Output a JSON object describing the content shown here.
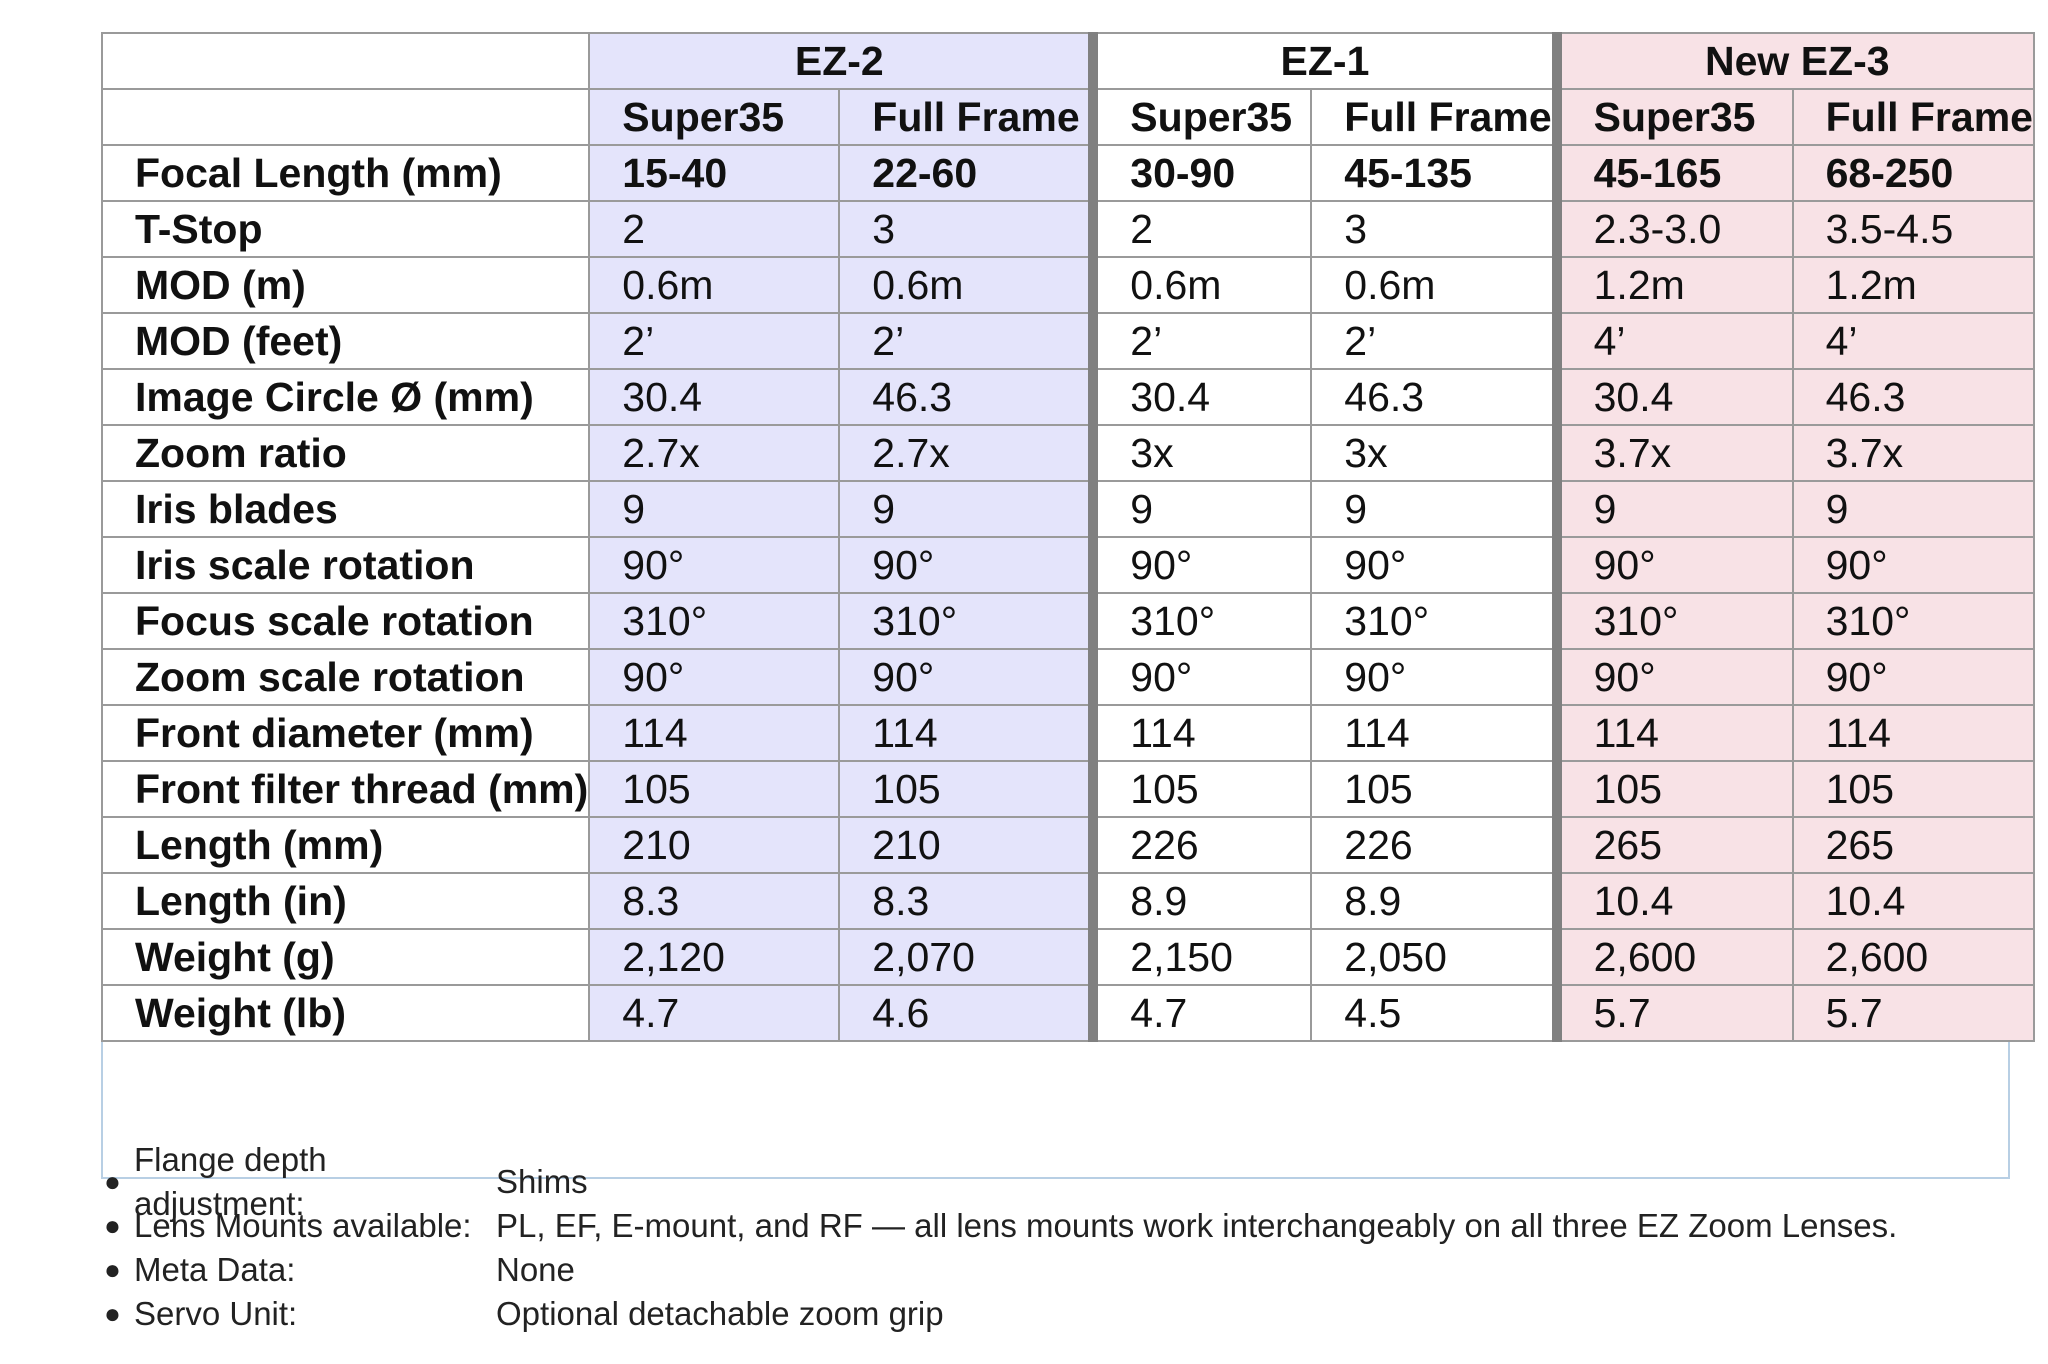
{
  "table": {
    "groups": [
      {
        "name": "EZ-2"
      },
      {
        "name": "EZ-1"
      },
      {
        "name": "New EZ-3"
      }
    ],
    "subheaders": [
      "Super35",
      "Full Frame",
      "Super35",
      "Full Frame",
      "Super35",
      "Full Frame"
    ],
    "rows": [
      {
        "label": "Focal Length (mm)",
        "values": [
          "15-40",
          "22-60",
          "30-90",
          "45-135",
          "45-165",
          "68-250"
        ]
      },
      {
        "label": "T-Stop",
        "values": [
          "2",
          "3",
          "2",
          "3",
          "2.3-3.0",
          "3.5-4.5"
        ]
      },
      {
        "label": "MOD (m)",
        "values": [
          "0.6m",
          "0.6m",
          "0.6m",
          "0.6m",
          "1.2m",
          "1.2m"
        ]
      },
      {
        "label": "MOD (feet)",
        "values": [
          "2’",
          "2’",
          "2’",
          "2’",
          "4’",
          "4’"
        ]
      },
      {
        "label": "Image Circle Ø (mm)",
        "values": [
          "30.4",
          "46.3",
          "30.4",
          "46.3",
          "30.4",
          "46.3"
        ]
      },
      {
        "label": "Zoom ratio",
        "values": [
          "2.7x",
          "2.7x",
          "3x",
          "3x",
          "3.7x",
          "3.7x"
        ]
      },
      {
        "label": "Iris blades",
        "values": [
          "9",
          "9",
          "9",
          "9",
          "9",
          "9"
        ]
      },
      {
        "label": "Iris scale rotation",
        "values": [
          "90°",
          "90°",
          "90°",
          "90°",
          "90°",
          "90°"
        ]
      },
      {
        "label": "Focus scale rotation",
        "values": [
          "310°",
          "310°",
          "310°",
          "310°",
          "310°",
          "310°"
        ]
      },
      {
        "label": "Zoom scale rotation",
        "values": [
          "90°",
          "90°",
          "90°",
          "90°",
          "90°",
          "90°"
        ]
      },
      {
        "label": "Front diameter (mm)",
        "values": [
          "114",
          "114",
          "114",
          "114",
          "114",
          "114"
        ]
      },
      {
        "label": "Front filter thread (mm)",
        "values": [
          "105",
          "105",
          "105",
          "105",
          "105",
          "105"
        ]
      },
      {
        "label": "Length (mm)",
        "values": [
          "210",
          "210",
          "226",
          "226",
          "265",
          "265"
        ]
      },
      {
        "label": "Length (in)",
        "values": [
          "8.3",
          "8.3",
          "8.9",
          "8.9",
          "10.4",
          "10.4"
        ]
      },
      {
        "label": "Weight (g)",
        "values": [
          "2,120",
          "2,070",
          "2,150",
          "2,050",
          "2,600",
          "2,600"
        ]
      },
      {
        "label": "Weight (lb)",
        "values": [
          "4.7",
          "4.6",
          "4.7",
          "4.5",
          "5.7",
          "5.7"
        ]
      }
    ]
  },
  "notes": [
    {
      "label": "Flange depth adjustment:",
      "value": "Shims"
    },
    {
      "label": "Lens Mounts available:",
      "value": "PL, EF, E-mount, and RF — all lens mounts work interchangeably on all three EZ Zoom Lenses."
    },
    {
      "label": "Meta Data:",
      "value": "None"
    },
    {
      "label": "Servo Unit:",
      "value": "Optional detachable zoom grip"
    }
  ],
  "colors": {
    "ez2": "#e4e4fb",
    "ez3": "#f8e2e6",
    "grid": "#9a9a9a",
    "separator": "#808080"
  }
}
